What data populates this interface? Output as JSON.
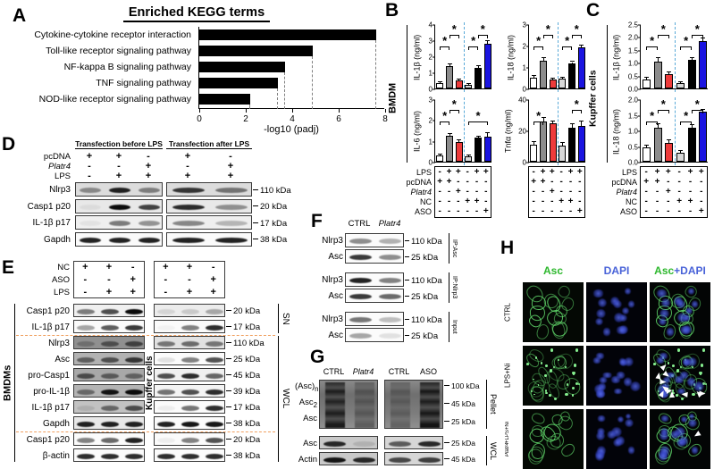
{
  "panels": {
    "a": "A",
    "b": "B",
    "c": "C",
    "d": "D",
    "e": "E",
    "f": "F",
    "g": "G",
    "h": "H"
  },
  "colors": {
    "bar_fills": [
      "#ffffff",
      "#8c8c8c",
      "#ee3b3b",
      "#d8d8d8",
      "#000000",
      "#1a14e0"
    ],
    "divider_blue": "#5aaad8",
    "separator_orange": "#f0a060",
    "asc_green": "#2eb82e",
    "dapi_blue": "#4862d8"
  },
  "chart_data": [
    {
      "id": "kegg",
      "type": "bar",
      "orientation": "horizontal",
      "title": "Enriched KEGG terms",
      "categories": [
        "Cytokine-cytokine receptor interaction",
        "Toll-like receptor signaling pathway",
        "NF-kappa B signaling pathway",
        "TNF signaling pathway",
        "NOD-like receptor signaling pathway"
      ],
      "values": [
        7.6,
        4.9,
        3.7,
        3.4,
        2.2
      ],
      "xlabel": "-log10 (padj)",
      "xlim": [
        0,
        8
      ],
      "xticks": [
        0,
        2,
        4,
        6,
        8
      ],
      "bar_color": "#000000",
      "guide_lines": "dashed"
    },
    {
      "id": "bmdm-il1b",
      "type": "bar",
      "group": "BMDM",
      "ylabel": "IL-1β (ng/ml)",
      "ylim": [
        0,
        4
      ],
      "yticks": [
        "0",
        "1",
        "2",
        "3",
        "4"
      ],
      "values": [
        0.35,
        1.4,
        0.5,
        0.25,
        1.3,
        2.8
      ],
      "errors": [
        0.06,
        0.1,
        0.08,
        0.05,
        0.1,
        0.12
      ],
      "sig": [
        [
          0,
          1
        ],
        [
          1,
          2
        ],
        [
          3,
          4
        ],
        [
          4,
          5
        ]
      ]
    },
    {
      "id": "bmdm-il18",
      "type": "bar",
      "group": "BMDM",
      "ylabel": "IL-18 (ng/ml)",
      "ylim": [
        0,
        3
      ],
      "yticks": [
        "0",
        "1",
        "2",
        "3"
      ],
      "values": [
        0.5,
        1.3,
        0.4,
        0.45,
        1.15,
        1.9
      ],
      "errors": [
        0.08,
        0.1,
        0.06,
        0.06,
        0.08,
        0.1
      ],
      "sig": [
        [
          0,
          1
        ],
        [
          1,
          2
        ],
        [
          3,
          4
        ],
        [
          4,
          5
        ]
      ]
    },
    {
      "id": "bmdm-il6",
      "type": "bar",
      "group": "BMDM",
      "ylabel": "IL-6 (ng/ml)",
      "ylim": [
        0,
        3
      ],
      "yticks": [
        "0",
        "1",
        "2",
        "3"
      ],
      "values": [
        0.3,
        1.25,
        0.95,
        0.25,
        1.15,
        1.2
      ],
      "errors": [
        0.06,
        0.1,
        0.08,
        0.06,
        0.07,
        0.18
      ],
      "sig": [
        [
          0,
          1
        ],
        [
          1,
          2
        ],
        [
          3,
          5
        ]
      ]
    },
    {
      "id": "bmdm-tnfa",
      "type": "bar",
      "group": "BMDM",
      "ylabel": "Tnfα (ng/ml)",
      "ylim": [
        0,
        40
      ],
      "yticks": [
        "0",
        "20",
        "40"
      ],
      "values": [
        11,
        26,
        24.5,
        10.5,
        22,
        23
      ],
      "errors": [
        1.5,
        2,
        1.5,
        1.5,
        1.8,
        2.5
      ],
      "sig": [
        [
          0,
          1
        ],
        [
          4,
          5
        ]
      ]
    },
    {
      "id": "kupffer-il1b",
      "type": "bar",
      "group": "Kupffer cells",
      "ylabel": "IL-1β (ng/ml)",
      "ylim": [
        0,
        2.5
      ],
      "yticks": [
        "0.0",
        "0.5",
        "1.0",
        "1.5",
        "2.0",
        "2.5"
      ],
      "values": [
        0.35,
        1.05,
        0.55,
        0.2,
        1.1,
        1.85
      ],
      "errors": [
        0.08,
        0.12,
        0.08,
        0.04,
        0.08,
        0.1
      ],
      "sig": [
        [
          0,
          1
        ],
        [
          1,
          2
        ],
        [
          3,
          4
        ],
        [
          4,
          5
        ]
      ]
    },
    {
      "id": "kupffer-il18",
      "type": "bar",
      "group": "Kupffer cells",
      "ylabel": "IL-18 (ng/ml)",
      "ylim": [
        0,
        2
      ],
      "yticks": [
        "0.0",
        "0.5",
        "1.0",
        "1.5",
        "2.0"
      ],
      "values": [
        0.45,
        1.1,
        0.6,
        0.3,
        1.1,
        1.6
      ],
      "errors": [
        0.07,
        0.1,
        0.08,
        0.05,
        0.07,
        0.06
      ],
      "sig": [
        [
          0,
          1
        ],
        [
          1,
          2
        ],
        [
          3,
          4
        ],
        [
          4,
          5
        ]
      ]
    }
  ],
  "bar_conditions": {
    "rows": [
      {
        "label": "LPS",
        "italic": false
      },
      {
        "label": "pcDNA",
        "italic": false
      },
      {
        "label": "Platr4",
        "italic": true
      },
      {
        "label": "NC",
        "italic": false
      },
      {
        "label": "ASO",
        "italic": false
      }
    ],
    "matrix": [
      [
        "-",
        "+",
        "+",
        "-",
        "+",
        "+"
      ],
      [
        "+",
        "+",
        "-",
        "-",
        "-",
        "-"
      ],
      [
        "-",
        "-",
        "+",
        "-",
        "-",
        "-"
      ],
      [
        "-",
        "-",
        "-",
        "+",
        "+",
        "-"
      ],
      [
        "-",
        "-",
        "-",
        "-",
        "-",
        "+"
      ]
    ]
  },
  "panelB": {
    "cell_type": "BMDM"
  },
  "panelC": {
    "cell_type": "Kupffer cells"
  },
  "panelD": {
    "group_headers": [
      "Transfection before LPS",
      "Transfection after LPS"
    ],
    "condition_rows": [
      {
        "label": "pcDNA",
        "italic": false,
        "g1": [
          "+",
          "+",
          "-"
        ],
        "g2": [
          "+",
          "-"
        ]
      },
      {
        "label": "Platr4",
        "italic": true,
        "g1": [
          "-",
          "-",
          "+"
        ],
        "g2": [
          "-",
          "+"
        ]
      },
      {
        "label": "LPS",
        "italic": false,
        "g1": [
          "-",
          "+",
          "+"
        ],
        "g2": [
          "+",
          "+"
        ]
      }
    ],
    "blots": [
      {
        "label": "Nlrp3",
        "mw": "110 kDa",
        "g1": [
          0.4,
          0.9,
          0.45
        ],
        "g2": [
          0.8,
          0.5
        ],
        "bg": "#dcdcdc"
      },
      {
        "label": "Casp1 p20",
        "mw": "20 kDa",
        "g1": [
          0.05,
          1,
          0.75
        ],
        "g2": [
          0.85,
          0.4
        ],
        "bg": "#e8e8e8"
      },
      {
        "label": "IL-1β p17",
        "mw": "17 kDa",
        "g1": [
          0.05,
          0.5,
          0.4
        ],
        "g2": [
          0.45,
          0.25
        ],
        "bg": "#efefef"
      },
      {
        "label": "Gapdh",
        "mw": "38 kDa",
        "g1": [
          0.9,
          0.9,
          0.9
        ],
        "g2": [
          0.9,
          0.9
        ],
        "bg": "#fafafa"
      }
    ]
  },
  "panelE": {
    "left_label": "BMDMs",
    "mid_label": "Kupffer cells",
    "fraction_labels": {
      "sn": "SN",
      "wcl": "WCL"
    },
    "condition_rows": [
      {
        "label": "NC",
        "vals": [
          "+",
          "+",
          "-"
        ]
      },
      {
        "label": "ASO",
        "vals": [
          "-",
          "-",
          "+"
        ]
      },
      {
        "label": "LPS",
        "vals": [
          "-",
          "+",
          "+"
        ]
      }
    ],
    "blots": [
      {
        "label": "Casp1 p20",
        "mw": "20 kDa",
        "b": [
          0.5,
          0.7,
          1
        ],
        "k": [
          0.1,
          0.15,
          0.3
        ],
        "bgB": "#f0f0f0",
        "bgK": "#ececec"
      },
      {
        "label": "IL-1β p17",
        "mw": "17 kDa",
        "b": [
          0.35,
          0.65,
          0.8
        ],
        "k": [
          0.03,
          0.5,
          0.85
        ],
        "bgB": "#fbfbfb",
        "bgK": "#fbfbfb"
      },
      {
        "label": "Nlrp3",
        "mw": "110 kDa",
        "b": [
          0.25,
          0.5,
          0.6
        ],
        "k": [
          0.5,
          0.55,
          0.5
        ],
        "bgB": "#909090",
        "bgK": "#e2e2e2"
      },
      {
        "label": "Asc",
        "mw": "25 kDa",
        "b": [
          0.5,
          0.6,
          0.75
        ],
        "k": [
          0.1,
          0.5,
          0.7
        ],
        "bgB": "#b2b2b2",
        "bgK": "#fbfbfb"
      },
      {
        "label": "pro-Casp1",
        "mw": "45 kDa",
        "b": [
          0.6,
          0.5,
          0.45
        ],
        "k": [
          0.7,
          0.85,
          0.6
        ],
        "bgB": "#a8a8a8",
        "bgK": "#f0f0f0"
      },
      {
        "label": "pro-IL-1β",
        "mw": "39 kDa",
        "b": [
          0.45,
          0.95,
          1
        ],
        "k": [
          0.55,
          0.7,
          0.85
        ],
        "bgB": "#b4b4b4",
        "bgK": "#f4f4f4"
      },
      {
        "label": "IL-1β p17",
        "mw": "17 kDa",
        "b": [
          0.1,
          0.5,
          0.65
        ],
        "k": [
          0.05,
          0.55,
          0.85
        ],
        "bgB": "#c2c2c2",
        "bgK": "#fbfbfb"
      },
      {
        "label": "Gapdh",
        "mw": "38 kDa",
        "b": [
          0.9,
          0.9,
          0.9
        ],
        "k": [
          0.9,
          0.95,
          0.95
        ],
        "bgB": "#e8e8e8",
        "bgK": "#fbfbfb"
      },
      {
        "label": "Casp1 p20",
        "mw": "20 kDa",
        "b": [
          0.5,
          0.6,
          0.9
        ],
        "k": [
          0.05,
          0.5,
          0.7
        ],
        "bgB": "#fbfbfb",
        "bgK": "#fbfbfb"
      },
      {
        "label": "β-actin",
        "mw": "38 kDa",
        "b": [
          0.85,
          0.85,
          0.85
        ],
        "k": [
          0.85,
          0.85,
          0.85
        ],
        "bgB": "#fbfbfb",
        "bgK": "#fbfbfb"
      }
    ]
  },
  "panelF": {
    "col_headers": [
      {
        "label": "CTRL",
        "italic": false
      },
      {
        "label": "Platr4",
        "italic": true
      }
    ],
    "groups": [
      {
        "side": "IP:Asc",
        "rows": [
          {
            "label": "Nlrp3",
            "mw": "110 kDa",
            "lanes": [
              0.45,
              0.3
            ]
          },
          {
            "label": "Asc",
            "mw": "25 kDa",
            "lanes": [
              0.8,
              0.45
            ]
          }
        ]
      },
      {
        "side": "IP:Nlrp3",
        "rows": [
          {
            "label": "Nlrp3",
            "mw": "110 kDa",
            "lanes": [
              0.9,
              0.5
            ]
          },
          {
            "label": "Asc",
            "mw": "25 kDa",
            "lanes": [
              0.8,
              0.6
            ]
          }
        ]
      },
      {
        "side": "Input",
        "rows": [
          {
            "label": "Nlrp3",
            "mw": "110 kDa",
            "lanes": [
              0.55,
              0.25
            ]
          },
          {
            "label": "Asc",
            "mw": "25 kDa",
            "lanes": [
              0.35,
              0.1
            ]
          }
        ]
      }
    ]
  },
  "panelG": {
    "left_headers": [
      {
        "label": "CTRL",
        "italic": false
      },
      {
        "label": "Platr4",
        "italic": true
      }
    ],
    "right_headers": [
      {
        "label": "CTRL",
        "italic": false
      },
      {
        "label": "ASO",
        "italic": false
      }
    ],
    "oligomer_labels": [
      {
        "t": "(Asc)",
        "sub": "n"
      },
      {
        "t": "Asc",
        "sub": "2"
      },
      {
        "t": "Asc",
        "sub": ""
      }
    ],
    "pellet_mws": [
      "100 kDa",
      "45 kDa",
      "25 kDa"
    ],
    "pellet_lanes_left": [
      0.85,
      0.35
    ],
    "pellet_lanes_right": [
      0.3,
      0.9
    ],
    "wcl_rows": [
      {
        "label": "Asc",
        "mw": "25 kDa",
        "left": [
          0.85,
          0.12
        ],
        "right": [
          0.6,
          0.85
        ]
      },
      {
        "label": "Actin",
        "mw": "45 kDa",
        "left": [
          0.95,
          0.85
        ],
        "right": [
          0.7,
          0.75
        ]
      }
    ],
    "side_labels": {
      "top": "Pellet",
      "bottom": "WCL"
    }
  },
  "panelH": {
    "col_headers": [
      {
        "parts": [
          {
            "text": "Asc",
            "color": "green"
          }
        ]
      },
      {
        "parts": [
          {
            "text": "DAPI",
            "color": "blue"
          }
        ]
      },
      {
        "parts": [
          {
            "text": "Asc",
            "color": "green"
          },
          {
            "text": "+DAPI",
            "color": "blue"
          }
        ]
      }
    ],
    "rows": [
      {
        "label_parts": [
          {
            "text": "CTRL",
            "italic": false
          }
        ],
        "style": "rings",
        "cells": 14,
        "arrows": 0,
        "seed": 7
      },
      {
        "label_parts": [
          {
            "text": "LPS+Ni",
            "italic": false
          }
        ],
        "style": "specks",
        "cells": 16,
        "arrows": 11,
        "seed": 23
      },
      {
        "label_parts": [
          {
            "text": "Platr4",
            "italic": true
          },
          {
            "text": "+LPS+Ni",
            "italic": false
          }
        ],
        "style": "rings",
        "cells": 14,
        "arrows": 1,
        "seed": 51
      }
    ]
  }
}
